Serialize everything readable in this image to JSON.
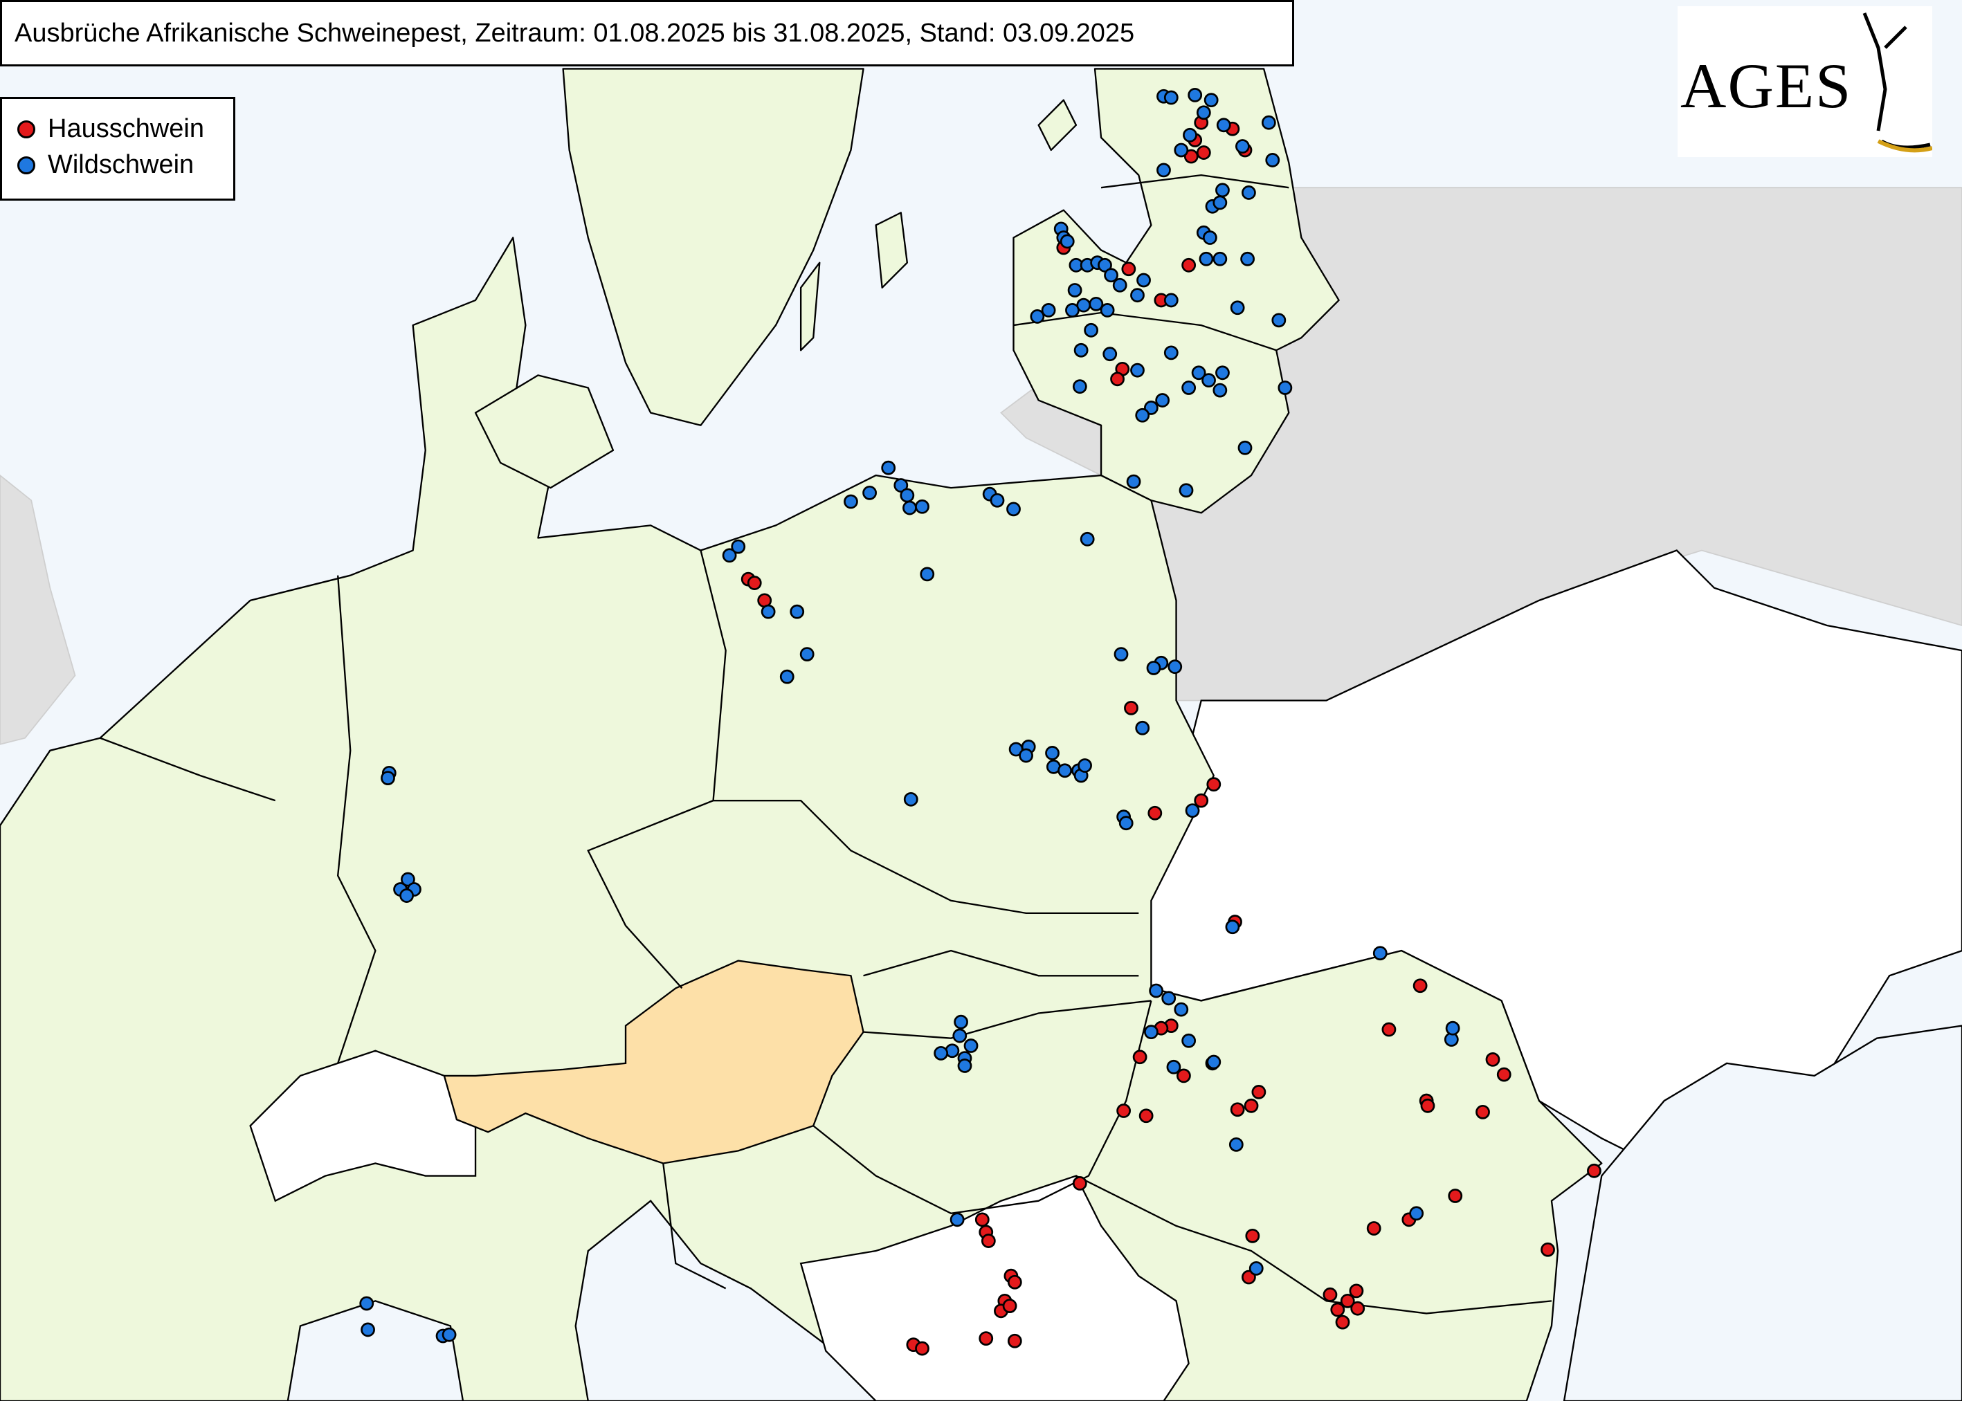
{
  "header": {
    "title": "Ausbrüche Afrikanische Schweinepest, Zeitraum: 01.08.2025 bis 31.08.2025, Stand: 03.09.2025"
  },
  "legend": {
    "items": [
      "Hausschwein",
      "Wildschwein"
    ]
  },
  "logo": {
    "text": "AGES"
  }
}
